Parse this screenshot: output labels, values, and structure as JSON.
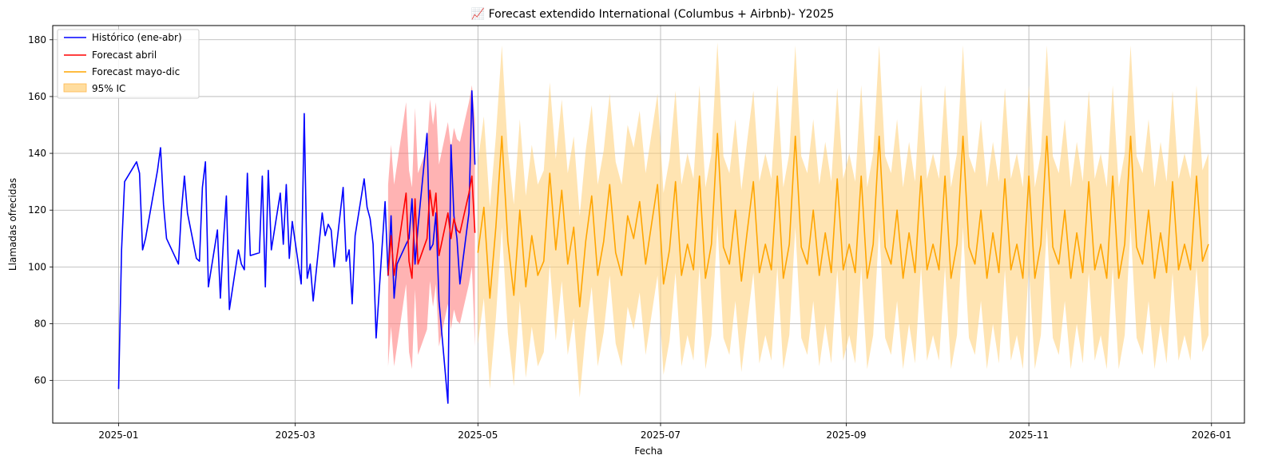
{
  "chart_data": {
    "type": "line",
    "title": "📈 Forecast extendido International (Columbus + Airbnb)- Y2025",
    "xlabel": "Fecha",
    "ylabel": "Llamadas ofrecidas",
    "xlim": [
      "2024-12-10",
      "2026-01-12"
    ],
    "ylim": [
      45,
      185
    ],
    "x_ticks": [
      "2025-01",
      "2025-03",
      "2025-05",
      "2025-07",
      "2025-09",
      "2025-11",
      "2026-01"
    ],
    "y_ticks": [
      60,
      80,
      100,
      120,
      140,
      160,
      180
    ],
    "grid": true,
    "legend_position": "upper left",
    "legend": [
      "Histórico (ene-abr)",
      "Forecast abril",
      "Forecast mayo-dic",
      "95% IC"
    ],
    "colors": {
      "historico": "#0000ff",
      "forecast_abril": "#ff0000",
      "forecast_abril_band": "#ff8080",
      "forecast_mayo_dic": "#ffa500",
      "ic_band": "#ffd27f"
    },
    "series": [
      {
        "name": "Histórico (ene-abr)",
        "color": "#0000ff",
        "x": [
          "2025-01-01",
          "2025-01-02",
          "2025-01-03",
          "2025-01-07",
          "2025-01-08",
          "2025-01-09",
          "2025-01-10",
          "2025-01-14",
          "2025-01-15",
          "2025-01-16",
          "2025-01-17",
          "2025-01-21",
          "2025-01-22",
          "2025-01-23",
          "2025-01-24",
          "2025-01-27",
          "2025-01-28",
          "2025-01-29",
          "2025-01-30",
          "2025-01-31",
          "2025-02-03",
          "2025-02-04",
          "2025-02-05",
          "2025-02-06",
          "2025-02-07",
          "2025-02-10",
          "2025-02-11",
          "2025-02-12",
          "2025-02-13",
          "2025-02-14",
          "2025-02-17",
          "2025-02-18",
          "2025-02-19",
          "2025-02-20",
          "2025-02-21",
          "2025-02-24",
          "2025-02-25",
          "2025-02-26",
          "2025-02-27",
          "2025-02-28",
          "2025-03-03",
          "2025-03-04",
          "2025-03-05",
          "2025-03-06",
          "2025-03-07",
          "2025-03-10",
          "2025-03-11",
          "2025-03-12",
          "2025-03-13",
          "2025-03-14",
          "2025-03-17",
          "2025-03-18",
          "2025-03-19",
          "2025-03-20",
          "2025-03-21",
          "2025-03-24",
          "2025-03-25",
          "2025-03-26",
          "2025-03-27",
          "2025-03-28",
          "2025-03-31",
          "2025-04-01",
          "2025-04-02",
          "2025-04-03",
          "2025-04-04",
          "2025-04-07",
          "2025-04-08",
          "2025-04-09",
          "2025-04-10",
          "2025-04-11",
          "2025-04-14",
          "2025-04-15",
          "2025-04-16",
          "2025-04-17",
          "2025-04-18",
          "2025-04-21",
          "2025-04-22",
          "2025-04-23",
          "2025-04-24",
          "2025-04-25",
          "2025-04-28",
          "2025-04-29",
          "2025-04-30"
        ],
        "values": [
          57,
          106,
          130,
          137,
          133,
          106,
          110,
          134,
          142,
          122,
          110,
          101,
          120,
          132,
          119,
          103,
          102,
          128,
          137,
          93,
          113,
          89,
          109,
          125,
          85,
          106,
          101,
          99,
          133,
          104,
          105,
          132,
          93,
          134,
          106,
          126,
          108,
          129,
          103,
          116,
          94,
          154,
          96,
          101,
          88,
          119,
          111,
          115,
          113,
          100,
          128,
          102,
          106,
          87,
          111,
          131,
          121,
          117,
          108,
          75,
          123,
          97,
          118,
          89,
          101,
          108,
          110,
          124,
          101,
          114,
          147,
          106,
          108,
          119,
          88,
          52,
          143,
          118,
          110,
          94,
          119,
          162,
          136
        ]
      },
      {
        "name": "Forecast abril",
        "color": "#ff0000",
        "x": [
          "2025-04-01",
          "2025-04-02",
          "2025-04-03",
          "2025-04-04",
          "2025-04-07",
          "2025-04-08",
          "2025-04-09",
          "2025-04-10",
          "2025-04-11",
          "2025-04-14",
          "2025-04-15",
          "2025-04-16",
          "2025-04-17",
          "2025-04-18",
          "2025-04-21",
          "2025-04-22",
          "2025-04-23",
          "2025-04-24",
          "2025-04-25",
          "2025-04-28",
          "2025-04-29",
          "2025-04-30"
        ],
        "values": [
          97,
          111,
          97,
          104,
          126,
          102,
          96,
          124,
          101,
          110,
          127,
          118,
          126,
          104,
          119,
          110,
          117,
          113,
          112,
          126,
          132,
          112
        ],
        "ci_lower": [
          65,
          79,
          65,
          72,
          94,
          70,
          64,
          92,
          69,
          78,
          95,
          86,
          94,
          72,
          87,
          78,
          85,
          81,
          80,
          94,
          100,
          72
        ],
        "ci_upper": [
          129,
          143,
          129,
          136,
          158,
          134,
          128,
          156,
          133,
          142,
          159,
          150,
          158,
          136,
          151,
          142,
          149,
          145,
          144,
          158,
          164,
          152
        ]
      },
      {
        "name": "Forecast mayo-dic",
        "color": "#ffa500",
        "x": [
          "2025-05-01",
          "2025-05-03",
          "2025-05-05",
          "2025-05-07",
          "2025-05-09",
          "2025-05-11",
          "2025-05-13",
          "2025-05-15",
          "2025-05-17",
          "2025-05-19",
          "2025-05-21",
          "2025-05-23",
          "2025-05-25",
          "2025-05-27",
          "2025-05-29",
          "2025-05-31",
          "2025-06-02",
          "2025-06-04",
          "2025-06-06",
          "2025-06-08",
          "2025-06-10",
          "2025-06-12",
          "2025-06-14",
          "2025-06-16",
          "2025-06-18",
          "2025-06-20",
          "2025-06-22",
          "2025-06-24",
          "2025-06-26",
          "2025-06-28",
          "2025-06-30",
          "2025-07-02",
          "2025-07-04",
          "2025-07-06",
          "2025-07-08",
          "2025-07-10",
          "2025-07-12",
          "2025-07-14",
          "2025-07-16",
          "2025-07-18",
          "2025-07-20",
          "2025-07-22",
          "2025-07-24",
          "2025-07-26",
          "2025-07-28",
          "2025-07-30",
          "2025-08-01",
          "2025-08-03",
          "2025-08-05",
          "2025-08-07",
          "2025-08-09",
          "2025-08-11",
          "2025-08-13",
          "2025-08-15",
          "2025-08-17",
          "2025-08-19",
          "2025-08-21",
          "2025-08-23",
          "2025-08-25",
          "2025-08-27",
          "2025-08-29",
          "2025-08-31",
          "2025-09-02",
          "2025-09-04",
          "2025-09-06",
          "2025-09-08",
          "2025-09-10",
          "2025-09-12",
          "2025-09-14",
          "2025-09-16",
          "2025-09-18",
          "2025-09-20",
          "2025-09-22",
          "2025-09-24",
          "2025-09-26",
          "2025-09-28",
          "2025-09-30",
          "2025-10-02",
          "2025-10-04",
          "2025-10-06",
          "2025-10-08",
          "2025-10-10",
          "2025-10-12",
          "2025-10-14",
          "2025-10-16",
          "2025-10-18",
          "2025-10-20",
          "2025-10-22",
          "2025-10-24",
          "2025-10-26",
          "2025-10-28",
          "2025-10-30",
          "2025-11-01",
          "2025-11-03",
          "2025-11-05",
          "2025-11-07",
          "2025-11-09",
          "2025-11-11",
          "2025-11-13",
          "2025-11-15",
          "2025-11-17",
          "2025-11-19",
          "2025-11-21",
          "2025-11-23",
          "2025-11-25",
          "2025-11-27",
          "2025-11-29",
          "2025-12-01",
          "2025-12-03",
          "2025-12-05",
          "2025-12-07",
          "2025-12-09",
          "2025-12-11",
          "2025-12-13",
          "2025-12-15",
          "2025-12-17",
          "2025-12-19",
          "2025-12-21",
          "2025-12-23",
          "2025-12-25",
          "2025-12-27",
          "2025-12-29",
          "2025-12-31"
        ],
        "values": [
          105,
          121,
          89,
          114,
          146,
          109,
          90,
          120,
          93,
          111,
          97,
          102,
          133,
          106,
          127,
          101,
          114,
          86,
          109,
          125,
          97,
          109,
          129,
          105,
          97,
          118,
          110,
          123,
          101,
          115,
          129,
          94,
          106,
          130,
          97,
          108,
          99,
          132,
          96,
          108,
          147,
          107,
          101,
          120,
          95,
          113,
          130,
          98,
          108,
          99,
          132,
          96,
          108,
          146,
          107,
          101,
          120,
          97,
          112,
          98,
          131,
          99,
          108,
          98,
          132,
          96,
          108,
          146,
          107,
          101,
          120,
          96,
          112,
          98,
          132,
          99,
          108,
          99,
          132,
          96,
          108,
          146,
          107,
          101,
          120,
          96,
          112,
          98,
          131,
          99,
          108,
          96,
          132,
          96,
          108,
          146,
          107,
          101,
          120,
          96,
          112,
          98,
          130,
          99,
          108,
          96,
          132,
          96,
          108,
          146,
          107,
          101,
          120,
          96,
          112,
          98,
          130,
          99,
          108,
          99,
          132,
          102,
          108
        ],
        "ci_lower": [
          73,
          89,
          57,
          82,
          114,
          77,
          58,
          88,
          61,
          79,
          65,
          70,
          101,
          74,
          95,
          69,
          82,
          54,
          77,
          93,
          65,
          77,
          97,
          73,
          65,
          86,
          78,
          91,
          69,
          83,
          97,
          62,
          74,
          98,
          65,
          76,
          67,
          100,
          64,
          76,
          115,
          75,
          69,
          88,
          63,
          81,
          98,
          66,
          76,
          67,
          100,
          64,
          76,
          114,
          75,
          69,
          88,
          65,
          80,
          66,
          99,
          67,
          76,
          66,
          100,
          64,
          76,
          114,
          75,
          69,
          88,
          64,
          80,
          66,
          100,
          67,
          76,
          67,
          100,
          64,
          76,
          114,
          75,
          69,
          88,
          64,
          80,
          66,
          99,
          67,
          76,
          64,
          100,
          64,
          76,
          114,
          75,
          69,
          88,
          64,
          80,
          66,
          98,
          67,
          76,
          64,
          100,
          64,
          76,
          114,
          75,
          69,
          88,
          64,
          80,
          66,
          98,
          67,
          76,
          67,
          100,
          70,
          76
        ],
        "ci_upper": [
          137,
          153,
          121,
          146,
          178,
          141,
          122,
          152,
          125,
          143,
          129,
          134,
          165,
          138,
          159,
          133,
          146,
          118,
          141,
          157,
          129,
          141,
          161,
          137,
          129,
          150,
          142,
          155,
          133,
          147,
          161,
          126,
          138,
          162,
          129,
          140,
          131,
          164,
          128,
          140,
          179,
          139,
          133,
          152,
          127,
          145,
          162,
          130,
          140,
          131,
          164,
          128,
          140,
          178,
          139,
          133,
          152,
          129,
          144,
          130,
          163,
          131,
          140,
          130,
          164,
          128,
          140,
          178,
          139,
          133,
          152,
          128,
          144,
          130,
          164,
          131,
          140,
          131,
          164,
          128,
          140,
          178,
          139,
          133,
          152,
          128,
          144,
          130,
          163,
          131,
          140,
          128,
          164,
          128,
          140,
          178,
          139,
          133,
          152,
          128,
          144,
          130,
          162,
          131,
          140,
          128,
          164,
          128,
          140,
          178,
          139,
          133,
          152,
          128,
          144,
          130,
          162,
          131,
          140,
          131,
          164,
          134,
          140
        ]
      }
    ]
  }
}
